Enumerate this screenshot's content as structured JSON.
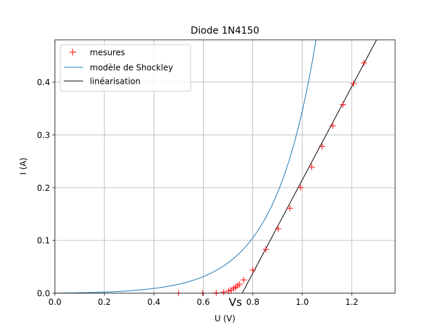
{
  "chart_data": {
    "type": "line",
    "title": "Diode 1N4150",
    "xlabel": "U (V)",
    "ylabel": "I (A)",
    "xlim": [
      0.0,
      1.375
    ],
    "ylim": [
      0.0,
      0.48
    ],
    "xticks": [
      "0.0",
      "0.2",
      "0.4",
      "0.6",
      "0.8",
      "1.0",
      "1.2"
    ],
    "xtick_values": [
      0.0,
      0.2,
      0.4,
      0.6,
      0.8,
      1.0,
      1.2
    ],
    "yticks": [
      "0.0",
      "0.1",
      "0.2",
      "0.3",
      "0.4"
    ],
    "ytick_values": [
      0.0,
      0.1,
      0.2,
      0.3,
      0.4
    ],
    "grid": true,
    "legend_position": "top-left",
    "series": [
      {
        "name": "mesures",
        "kind": "markers",
        "marker": "plus",
        "color": "#ff0000",
        "points": [
          [
            0.5,
            0.0
          ],
          [
            0.597,
            0.0
          ],
          [
            0.652,
            0.0005
          ],
          [
            0.682,
            0.002
          ],
          [
            0.702,
            0.004
          ],
          [
            0.712,
            0.006
          ],
          [
            0.722,
            0.009
          ],
          [
            0.73,
            0.011
          ],
          [
            0.738,
            0.014
          ],
          [
            0.746,
            0.017
          ],
          [
            0.763,
            0.025
          ],
          [
            0.8,
            0.044
          ],
          [
            0.853,
            0.083
          ],
          [
            0.902,
            0.122
          ],
          [
            0.95,
            0.161
          ],
          [
            0.993,
            0.2
          ],
          [
            1.038,
            0.239
          ],
          [
            1.08,
            0.278
          ],
          [
            1.123,
            0.317
          ],
          [
            1.164,
            0.357
          ],
          [
            1.207,
            0.397
          ],
          [
            1.249,
            0.436
          ]
        ]
      },
      {
        "name": "modèle de Shockley",
        "kind": "line",
        "color": "#1f77b4",
        "curve": {
          "Is": 0.00092,
          "nVt": 0.1686
        }
      },
      {
        "name": "linéarisation",
        "kind": "line",
        "color": "#000000",
        "points": [
          [
            0.757,
            0.0
          ],
          [
            1.3,
            0.48
          ]
        ]
      }
    ],
    "annotations": [
      {
        "text": "Vs",
        "x": 0.76,
        "y": -0.02
      }
    ]
  }
}
